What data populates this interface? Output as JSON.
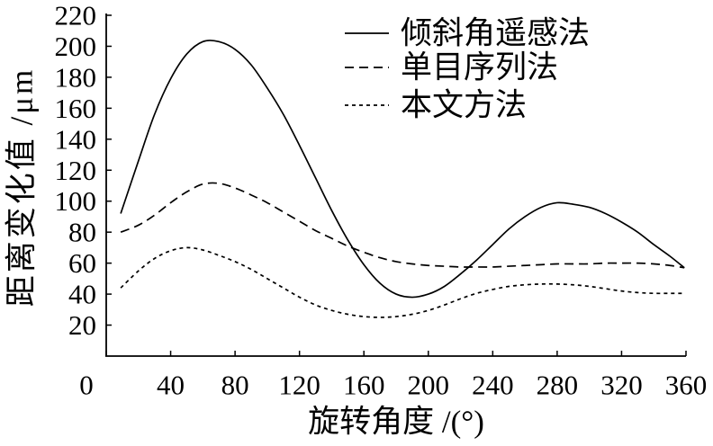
{
  "chart_data": {
    "type": "line",
    "xlabel": "旋转角度 /(°)",
    "ylabel": "距离变化值 /μm",
    "xlim": [
      0,
      360
    ],
    "ylim": [
      0,
      220
    ],
    "xticks": [
      0,
      40,
      80,
      120,
      160,
      200,
      240,
      280,
      320,
      360
    ],
    "yticks": [
      20,
      40,
      60,
      80,
      100,
      120,
      140,
      160,
      180,
      200,
      220
    ],
    "grid": false,
    "legend": "top-right",
    "x": [
      9,
      20,
      30,
      40,
      50,
      60,
      70,
      80,
      90,
      100,
      110,
      120,
      130,
      140,
      150,
      160,
      170,
      180,
      190,
      200,
      210,
      220,
      230,
      240,
      250,
      260,
      270,
      280,
      290,
      300,
      310,
      320,
      330,
      340,
      350,
      359
    ],
    "series": [
      {
        "name": "倾斜角遥感法",
        "line_style": "solid",
        "color": "#000000",
        "values": [
          92,
          126,
          156,
          179,
          195,
          203,
          203,
          198,
          188,
          173,
          156,
          136,
          115,
          94,
          75,
          59,
          47,
          40,
          38,
          40,
          45,
          53,
          62,
          72,
          82,
          90,
          96,
          99,
          98,
          96,
          92,
          86.5,
          80,
          72,
          64.5,
          57
        ]
      },
      {
        "name": "单目序列法",
        "line_style": "dashed",
        "color": "#000000",
        "values": [
          80,
          84.5,
          91,
          99,
          106,
          111,
          111.5,
          108.5,
          104,
          99,
          93,
          87,
          81,
          76,
          71,
          67,
          63.5,
          61,
          59.5,
          58.5,
          58,
          57.5,
          57.5,
          57.5,
          58,
          58.5,
          59,
          59.5,
          59.5,
          59.5,
          60,
          60,
          60,
          59.5,
          58.5,
          57
        ]
      },
      {
        "name": "本文方法",
        "line_style": "dotted",
        "color": "#000000",
        "values": [
          44,
          55,
          63,
          68,
          70,
          68.5,
          65,
          61,
          56,
          50,
          44,
          38,
          33,
          29.5,
          27,
          25.5,
          25,
          25.5,
          27,
          29.5,
          33,
          37,
          40.5,
          43,
          45,
          46,
          46.5,
          46.5,
          46,
          45,
          43.5,
          42,
          41,
          40.5,
          40.5,
          40.5
        ]
      }
    ]
  }
}
